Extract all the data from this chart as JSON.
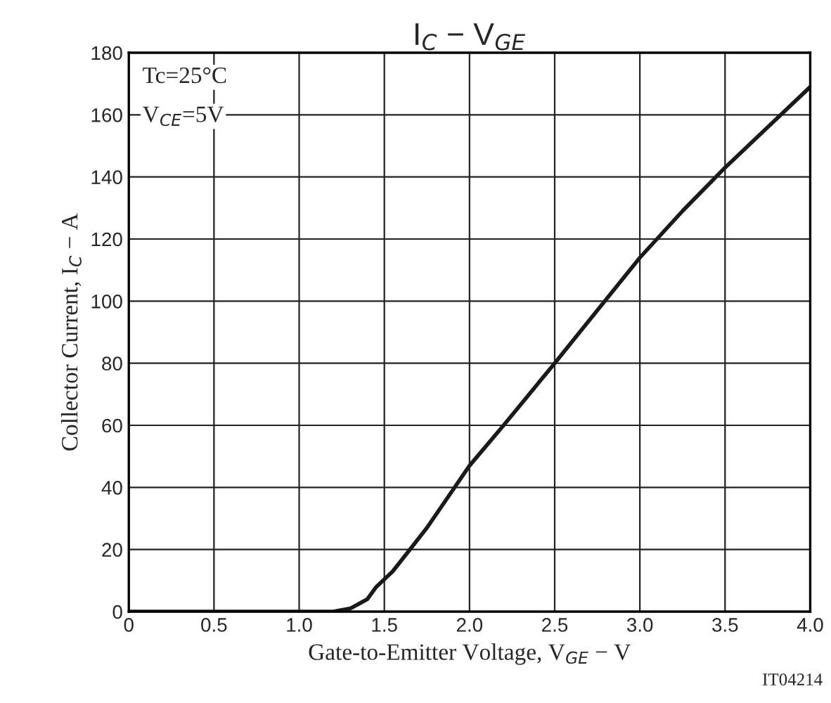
{
  "chart_data": {
    "type": "line",
    "title": "I$_{C}$ − V$_{GE}$",
    "xlabel": "Gate-to-Emitter Voltage, V$_{GE}$ − V",
    "ylabel": "Collector Current, I$_{C}$ − A",
    "x": [
      0,
      0.5,
      1.0,
      1.2,
      1.3,
      1.4,
      1.45,
      1.55,
      1.65,
      1.75,
      1.9,
      2.0,
      2.2,
      2.5,
      2.75,
      3.0,
      3.25,
      3.5,
      3.75,
      4.0
    ],
    "series": [
      {
        "color": "#1a1a1a",
        "values": [
          0,
          0,
          0,
          0,
          1,
          4,
          7.8,
          13,
          20,
          27,
          39,
          47,
          60,
          80,
          97,
          114,
          129,
          143,
          156,
          169
        ]
      }
    ],
    "xlim": [
      0,
      4.0
    ],
    "xticks": [
      {
        "value": 0,
        "label": "0"
      },
      0.5,
      {
        "value": 1,
        "label": "1.0"
      },
      1.5,
      {
        "value": 2,
        "label": "2.0"
      },
      2.5,
      {
        "value": 3,
        "label": "3.0"
      },
      3.5,
      {
        "value": 4,
        "label": "4.0"
      }
    ],
    "ylim": [
      0,
      180
    ],
    "yticks": [
      0,
      20,
      40,
      60,
      80,
      100,
      120,
      140,
      160,
      180
    ],
    "grid": true,
    "line_style": "solid",
    "marker": "none",
    "annotations": [
      "Tc=25°C",
      "V$_{CE}$=5V",
      "IT04214"
    ]
  }
}
